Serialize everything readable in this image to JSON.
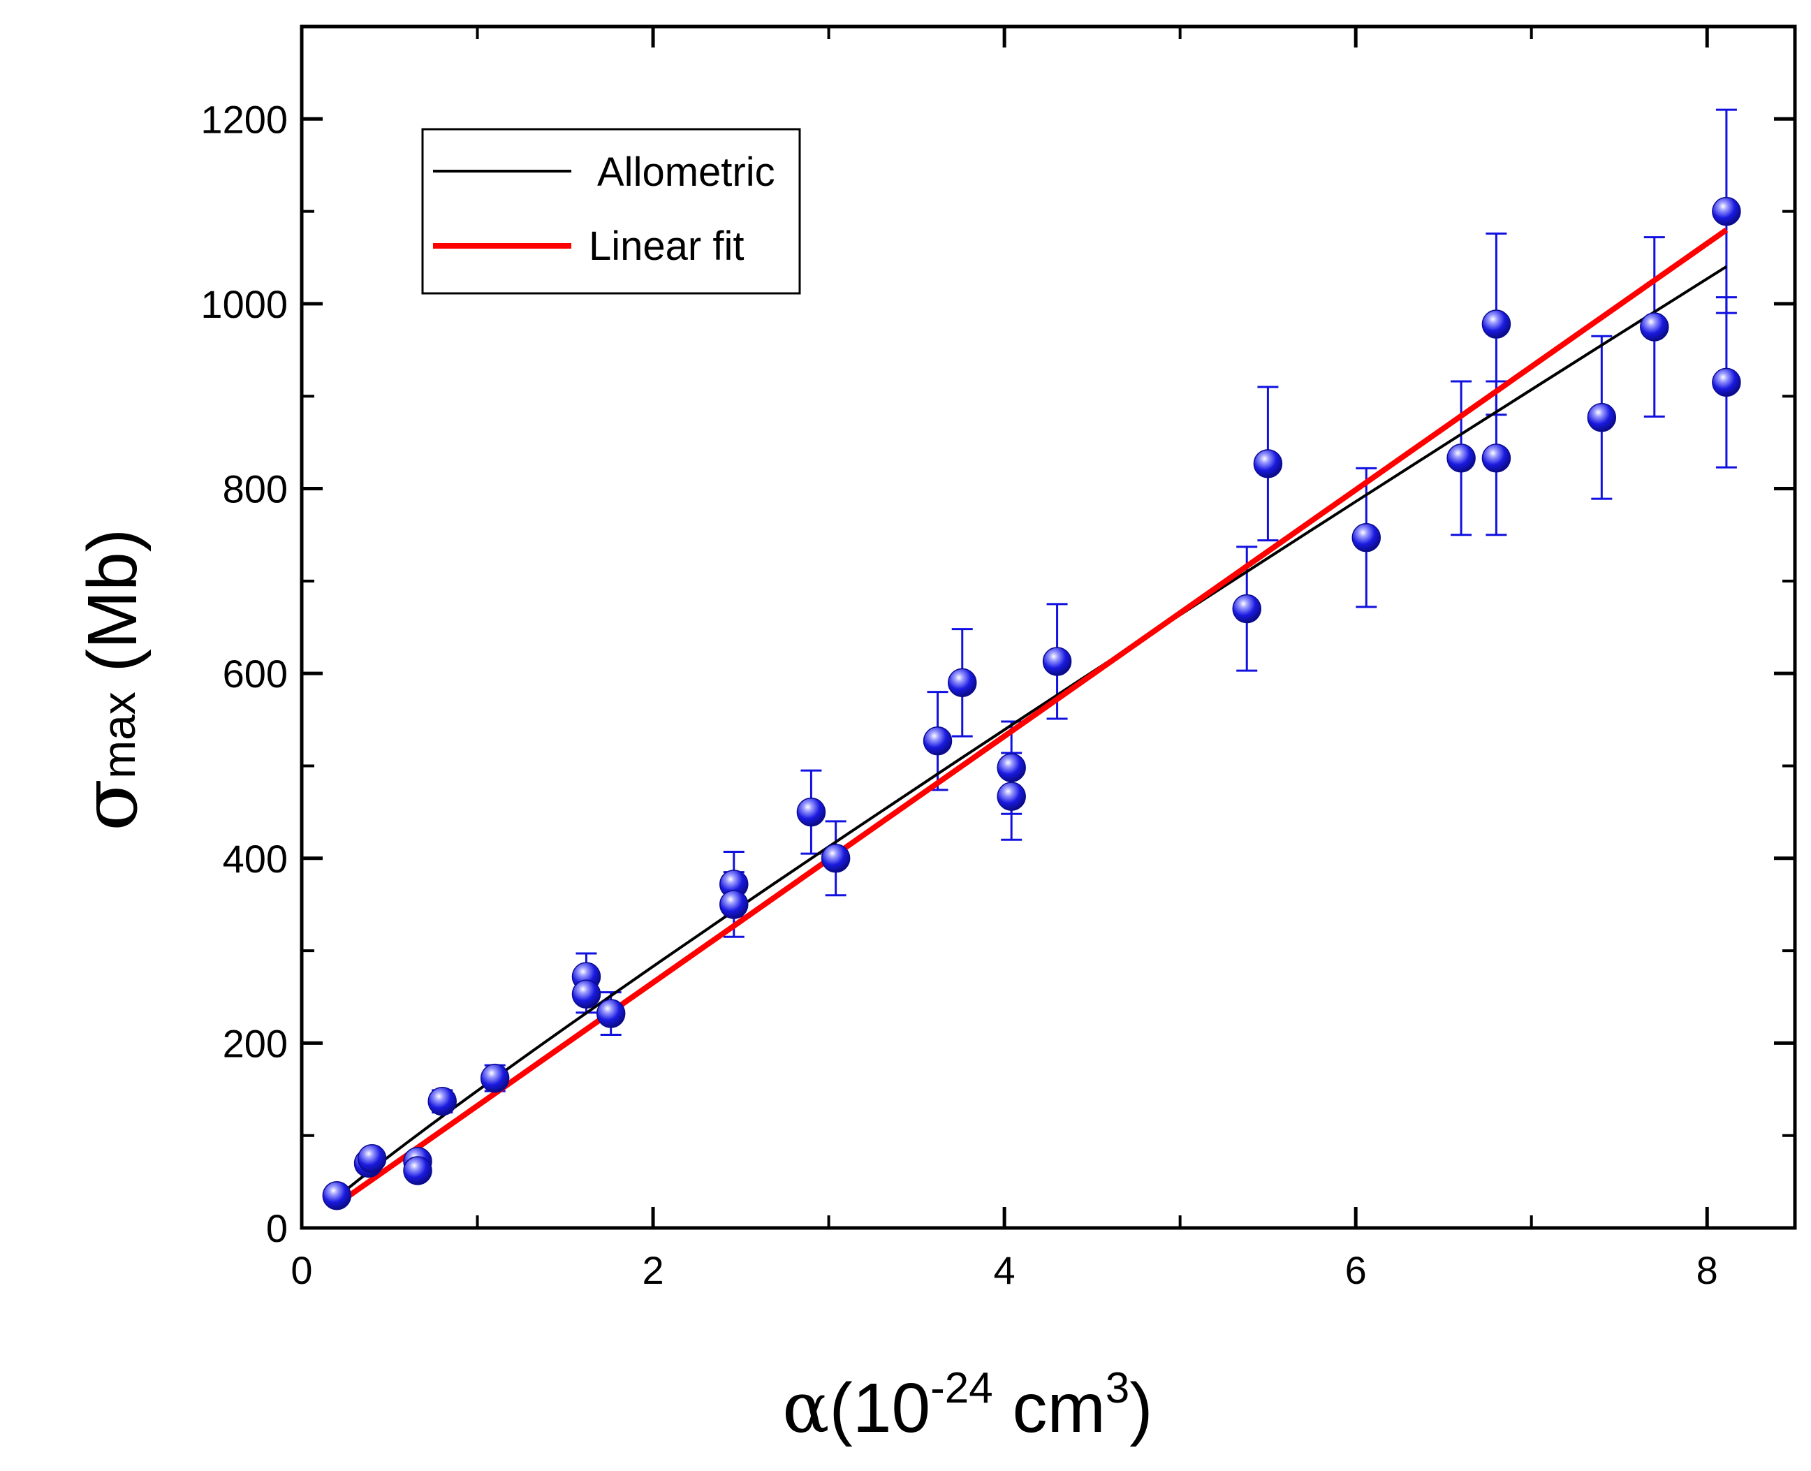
{
  "chart_data": {
    "type": "scatter",
    "title": "",
    "xlabel": {
      "symbol": "α",
      "open": "(",
      "base": "10",
      "exp": "-24",
      "unit": " cm",
      "unit_exp": "3",
      "close": ")"
    },
    "ylabel": {
      "symbol": "σ",
      "sub": "max",
      "unit": " (Mb)"
    },
    "xlim": [
      0,
      8.5
    ],
    "ylim": [
      0,
      1300
    ],
    "x_ticks": [
      0,
      2,
      4,
      6,
      8
    ],
    "x_tick_labels": [
      "0",
      "2",
      "4",
      "6",
      "8"
    ],
    "x_minor_ticks": [
      1,
      3,
      5,
      7
    ],
    "y_ticks": [
      0,
      200,
      400,
      600,
      800,
      1000,
      1200
    ],
    "y_tick_labels": [
      "0",
      "200",
      "400",
      "600",
      "800",
      "1000",
      "1200"
    ],
    "y_minor_ticks": [
      100,
      300,
      500,
      700,
      900,
      1100
    ],
    "grid": false,
    "legend": {
      "position": "top-left",
      "entries": [
        {
          "label": "Allometric",
          "color": "#000000"
        },
        {
          "label": "Linear fit",
          "color": "#ff0000"
        }
      ]
    },
    "series": [
      {
        "name": "data",
        "color": "#1010e0",
        "points": [
          {
            "x": 0.2,
            "y": 35,
            "err": 0
          },
          {
            "x": 0.38,
            "y": 70,
            "err": 5
          },
          {
            "x": 0.4,
            "y": 75,
            "err": 5
          },
          {
            "x": 0.66,
            "y": 72,
            "err": 5
          },
          {
            "x": 0.66,
            "y": 62,
            "err": 5
          },
          {
            "x": 0.8,
            "y": 137,
            "err": 12
          },
          {
            "x": 1.1,
            "y": 162,
            "err": 14
          },
          {
            "x": 1.62,
            "y": 272,
            "err": 25
          },
          {
            "x": 1.62,
            "y": 253,
            "err": 20
          },
          {
            "x": 1.76,
            "y": 232,
            "err": 23
          },
          {
            "x": 2.46,
            "y": 372,
            "err": 35
          },
          {
            "x": 2.46,
            "y": 350,
            "err": 35
          },
          {
            "x": 2.9,
            "y": 450,
            "err": 45
          },
          {
            "x": 3.04,
            "y": 400,
            "err": 40
          },
          {
            "x": 3.62,
            "y": 527,
            "err": 53
          },
          {
            "x": 3.76,
            "y": 590,
            "err": 58
          },
          {
            "x": 4.04,
            "y": 498,
            "err": 50
          },
          {
            "x": 4.04,
            "y": 467,
            "err": 47
          },
          {
            "x": 4.3,
            "y": 613,
            "err": 62
          },
          {
            "x": 5.38,
            "y": 670,
            "err": 67
          },
          {
            "x": 5.5,
            "y": 827,
            "err": 83
          },
          {
            "x": 6.06,
            "y": 747,
            "err": 75
          },
          {
            "x": 6.6,
            "y": 833,
            "err": 83
          },
          {
            "x": 6.8,
            "y": 978,
            "err": 98
          },
          {
            "x": 6.8,
            "y": 833,
            "err": 83
          },
          {
            "x": 7.4,
            "y": 877,
            "err": 88
          },
          {
            "x": 7.7,
            "y": 975,
            "err": 97
          },
          {
            "x": 8.11,
            "y": 1100,
            "err": 110
          },
          {
            "x": 8.11,
            "y": 915,
            "err": 92
          }
        ]
      }
    ],
    "fits": [
      {
        "name": "Allometric",
        "color": "#000000",
        "a": 148.5,
        "b": 0.93,
        "x_range": [
          0.2,
          8.11
        ]
      },
      {
        "name": "Linear fit",
        "color": "#ff0000",
        "slope": 133.3,
        "intercept": -1.1,
        "x_range": [
          0.2,
          8.11
        ]
      }
    ]
  }
}
